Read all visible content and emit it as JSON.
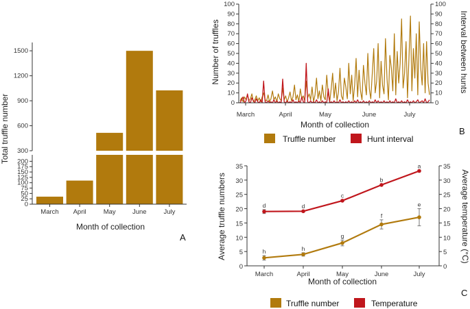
{
  "colors": {
    "truffle": "#b17a0d",
    "temperature": "#c0161c",
    "hunt": "#c0161c",
    "axis": "#333333",
    "grid": "#eeeeee"
  },
  "chart_data": [
    {
      "id": "A",
      "type": "bar",
      "panel_label": "A",
      "categories": [
        "March",
        "April",
        "May",
        "June",
        "July"
      ],
      "values": [
        35,
        110,
        515,
        1500,
        1025
      ],
      "xlabel": "Month of collection",
      "ylabel": "Total truffle number",
      "axis_break": true,
      "lower_ylim": [
        0,
        230
      ],
      "upper_ylim": [
        300,
        1600
      ],
      "lower_ticks": [
        "0",
        "25",
        "50",
        "75",
        "100",
        "125",
        "150",
        "175",
        "200"
      ],
      "upper_ticks": [
        "300",
        "600",
        "900",
        "1200",
        "1500"
      ],
      "lower_tick_values": [
        0,
        25,
        50,
        75,
        100,
        125,
        150,
        175,
        200
      ],
      "upper_tick_values": [
        300,
        600,
        900,
        1200,
        1500
      ]
    },
    {
      "id": "B",
      "type": "line",
      "panel_label": "B",
      "xlabel": "Month of collection",
      "ylabel": "Number of truffles",
      "y2label": "Interval between hunts",
      "x_ticks": [
        "March",
        "April",
        "May",
        "June",
        "July"
      ],
      "ylim": [
        0,
        100
      ],
      "y_ticks": [
        "0",
        "10",
        "20",
        "30",
        "40",
        "50",
        "60",
        "70",
        "80",
        "90",
        "100"
      ],
      "y2_ticks": [
        "0",
        "10",
        "20",
        "30",
        "40",
        "50",
        "60",
        "70",
        "80",
        "90",
        "100"
      ],
      "series": [
        {
          "name": "Truffle number",
          "values": [
            2,
            5,
            1,
            6,
            3,
            8,
            2,
            4,
            9,
            1,
            3,
            7,
            2,
            5,
            1,
            6,
            10,
            3,
            2,
            8,
            1,
            4,
            12,
            3,
            6,
            1,
            9,
            4,
            2,
            15,
            3,
            7,
            1,
            5,
            11,
            2,
            6,
            18,
            3,
            8,
            1,
            14,
            4,
            7,
            2,
            22,
            5,
            9,
            3,
            16,
            1,
            8,
            25,
            4,
            12,
            2,
            18,
            6,
            3,
            28,
            9,
            1,
            14,
            30,
            5,
            20,
            2,
            11,
            35,
            7,
            3,
            25,
            16,
            4,
            40,
            9,
            28,
            2,
            18,
            45,
            6,
            33,
            12,
            3,
            38,
            20,
            8,
            50,
            14,
            4,
            30,
            55,
            10,
            22,
            60,
            5,
            42,
            18,
            9,
            65,
            25,
            3,
            48,
            35,
            12,
            70,
            8,
            52,
            20,
            40,
            85,
            15,
            30,
            62,
            5,
            45,
            88,
            12,
            55,
            25,
            70,
            8,
            82,
            35,
            18,
            60,
            10,
            62,
            20,
            8
          ]
        },
        {
          "name": "Hunt interval",
          "values": [
            0,
            3,
            6,
            0,
            2,
            9,
            1,
            0,
            5,
            2,
            0,
            4,
            1,
            0,
            3,
            0,
            22,
            1,
            0,
            2,
            0,
            1,
            0,
            3,
            0,
            2,
            0,
            1,
            0,
            24,
            1,
            0,
            2,
            0,
            1,
            0,
            3,
            0,
            1,
            0,
            2,
            0,
            6,
            1,
            0,
            40,
            1,
            0,
            2,
            0,
            1,
            0,
            3,
            0,
            1,
            0,
            2,
            0,
            1,
            0,
            14,
            0,
            1,
            0,
            2,
            0,
            1,
            0,
            3,
            0,
            1,
            0,
            1,
            0,
            2,
            0,
            1,
            0,
            2,
            0,
            3,
            0,
            1,
            0,
            2,
            0,
            1,
            0,
            2,
            0,
            1,
            0,
            3,
            0,
            2,
            0,
            1,
            0,
            2,
            0,
            1,
            0,
            2,
            0,
            1,
            0,
            4,
            0,
            1,
            0,
            2,
            0,
            1,
            0,
            3,
            0,
            1,
            0,
            2,
            0,
            1,
            3,
            0,
            1,
            2,
            0,
            4,
            0,
            1,
            3
          ]
        }
      ],
      "legend": [
        "Truffle number",
        "Hunt interval"
      ]
    },
    {
      "id": "C",
      "type": "line",
      "panel_label": "C",
      "categories": [
        "March",
        "April",
        "May",
        "June",
        "July"
      ],
      "xlabel": "Month of collection",
      "ylabel": "Average truffle numbers",
      "y2label": "Average temperature (°C)",
      "ylim": [
        0,
        35
      ],
      "y_ticks": [
        "0",
        "5",
        "10",
        "15",
        "20",
        "25",
        "30",
        "35"
      ],
      "y2_ticks": [
        "0",
        "5",
        "10",
        "15",
        "20",
        "25",
        "30",
        "35"
      ],
      "series": [
        {
          "name": "Truffle number",
          "values": [
            2.8,
            4.0,
            8.0,
            14.5,
            17.0
          ],
          "errors": [
            0.8,
            0.6,
            1.0,
            1.6,
            3.0
          ],
          "letters": [
            "h",
            "h",
            "g",
            "f",
            "e"
          ]
        },
        {
          "name": "Temperature",
          "values": [
            19.0,
            19.1,
            22.8,
            28.3,
            33.2
          ],
          "errors": [
            0.7,
            0.3,
            0.3,
            0.3,
            0.3
          ],
          "letters": [
            "d",
            "d",
            "c",
            "b",
            "a"
          ]
        }
      ],
      "legend": [
        "Truffle number",
        "Temperature"
      ]
    }
  ]
}
